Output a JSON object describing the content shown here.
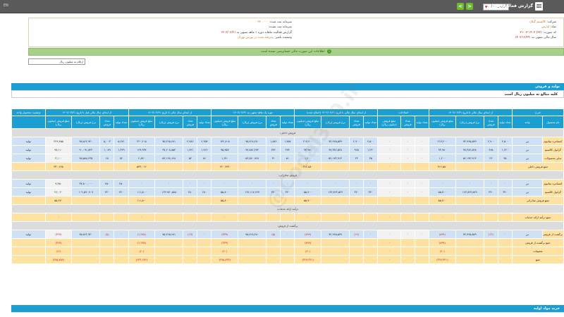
{
  "header": {
    "title": "گزارش فعالیت ماهانه",
    "select_value": "گزارش فعالیت",
    "left_text": "EN",
    "prev_symbol": "<",
    "next_symbol": ">"
  },
  "info": {
    "right_col": [
      {
        "label": "شرکت:",
        "value": "کالسیم گیلان"
      },
      {
        "label": "نماد:",
        "value": "لپارس"
      },
      {
        "label": "کد صورت:",
        "value": "(۳۲) ۱۴۰۳-۰۳-۳۱"
      },
      {
        "label": "سال مالی منتهی به:",
        "value": "۱۴۰۲/۱۲/۲۹"
      }
    ],
    "mid_col": [
      {
        "label": "سرمایه ثبت شده:",
        "value": "۳۲۰,۰۰۰"
      },
      {
        "label": "سرمایه ثبت نشده:",
        "value": "۰"
      },
      {
        "label": "گزارش فعالیت ماهانه دوره ۱ ماهه منتهی به",
        "value": "۱۴۰۳/۰۳/۳۱"
      },
      {
        "label": "وضعیت ناشر:",
        "value": "پذیرفته شده در بورس تهران"
      }
    ]
  },
  "notice": "اطلاعات این صورت مالی حسابرسی نشده است",
  "filter_box": "ارقام به میلیون ریال",
  "section1_title": "تولید و فروش",
  "section1_sub": "کلیه مبالغ به میلیون ریال است",
  "table": {
    "group_headers": [
      "شرح",
      "از ابتدای سال مالی تا تاریخ ۱۴۰۳/۰۲/۳۱",
      "اصلاحات",
      "از ابتدای سال مالی تا تاریخ ۱۴۰۳/۰۲/۳۱ (اصلاح شده)",
      "دوره یک ماهه منتهی به ۱۴۰۳/۰۳/۳۱",
      "از ابتدای سال مالی تا تاریخ ۱۴۰۳/۰۳/۳۱",
      "از ابتدای سال مالی قبل تا تاریخ ۱۴۰۲/۰۳/۳۱",
      "وضعیت محصول-واحد"
    ],
    "sub_headers": [
      "نام محصول",
      "واحد",
      "تعداد تولید",
      "تعداد فروش",
      "نرخ فروش (ریال)",
      "مبلغ فروش (میلیون ریال)",
      "تعداد تولید",
      "تعداد فروش",
      "مبلغ فروش (میلیون ریال)",
      "تعداد تولید",
      "تعداد فروش",
      "نرخ فروش (ریال)",
      "مبلغ فروش (میلیون ریال)",
      "تعداد تولید",
      "تعداد فروش",
      "نرخ فروش (ریال)",
      "مبلغ فروش (میلیون ریال)",
      "تعداد تولید",
      "تعداد فروش",
      "نرخ فروش (ریال)",
      "مبلغ فروش (میلیون ریال)",
      "تعداد تولید",
      "تعداد فروش",
      "نرخ فروش (ریال)",
      "مبلغ فروش (میلیون ریال)",
      ""
    ],
    "rows": [
      {
        "kind": "cat",
        "label": "فروش داخلی:"
      },
      {
        "kind": "data",
        "label": "کنسانتره تیتانیوم",
        "unit": "تن",
        "cells": [
          "۴,۵۰۰",
          "۲,۹۰۰",
          "۷۴,۹۶۵,۵۷۹",
          "۲۱۷,۴۰۰",
          "۰",
          "۰",
          "۰",
          "۴,۵۰۰",
          "۲,۹۰۰",
          "۷۴,۹۶۵,۵۷۹",
          "۲۱۷,۴۰۰",
          "۱,۷۵۷",
          "۱,۸۸۶",
          "۷۵,۷۱۸,۴۸۰",
          "۱۴۲,۸۰۵",
          "۶,۲۵۷",
          "۴,۷۸۶",
          "۷۵,۲۶۵,۶۸۱",
          "۳۶۰,۲۰۵",
          "۵,۶۷۱",
          "۵,۰۰۳",
          "۴۵,۸۶۲,۹۴۰",
          "۲۲۹,۴۵۵",
          "تولید"
        ]
      },
      {
        "kind": "data",
        "label": "گرانول کالسیم",
        "unit": "تن",
        "cells": [
          "۱,۲۴۰",
          "۹۶۵",
          "۹۷,۳۸۶,۵۲۸",
          "۹۳,۹۸۰",
          "۰",
          "۰",
          "۰",
          "۱,۲۴۰",
          "۹۶۵",
          "۹۷,۳۸۶,۵۲۸",
          "۹۳,۹۸۰",
          "۴۷۴",
          "۷۷۶",
          "۹۷,۸۸۲,۴۷۴",
          "۷۵,۹۵۷",
          "۱,۷۱۴",
          "۱,۷۴۱",
          "۹۷,۶۰۸,۸۵۴",
          "۱۶۹,۹۳۷",
          "۱,۳۲۹",
          "۱,۰۸۹",
          "۹۰,۰۹۱,۸۲۴",
          "۹۸,۱۱۰",
          "تولید"
        ]
      },
      {
        "kind": "data",
        "label": "سایر محصولات",
        "unit": "تن",
        "cells": [
          "۳۵",
          "۲۳",
          "۵۲,۱۷۳,۹۱۳",
          "۱,۲۰۰",
          "۰",
          "۰",
          "۰",
          "۳۵",
          "۲۳",
          "۵۲,۱۷۳,۹۱۳",
          "۱,۲۰۰",
          "۵۱",
          "۳۱",
          "۵۳,۸۷۰,۹۶۸",
          "۱,۶۷۰",
          "۸۶",
          "۵۴",
          "۵۳,۱۴۸,۱۴۸",
          "۲,۸۷۰",
          "۸۲",
          "۶۸",
          "۴۵,۵۸۸,۲۳۵",
          "۳,۱۰۰",
          "تولید"
        ]
      },
      {
        "kind": "sum",
        "label": "جمع فروش داخلی",
        "cells": [
          "",
          "",
          "",
          "۳۱۲,۵۸۰",
          "",
          "",
          "۰",
          "",
          "",
          "",
          "۳۱۲,۵۸۰",
          "",
          "",
          "",
          "۲۲۰,۴۳۲",
          "",
          "",
          "",
          "۵۳۳,۰۱۲",
          "",
          "",
          "",
          "۳۳۰,۶۶۵",
          ""
        ]
      },
      {
        "kind": "cat",
        "label": "فروش صادراتی:"
      },
      {
        "kind": "data",
        "label": "کنسانتره تیتانیوم",
        "unit": "تن",
        "cells": [
          "۰",
          "۰",
          "۰",
          "۰",
          "۰",
          "۰",
          "۰",
          "۰",
          "۰",
          "۰",
          "۰",
          "۰",
          "۰",
          "۰",
          "۰",
          "۰",
          "۰",
          "۰",
          "۰",
          "۲۵۰",
          "۲۵۰",
          "۳۷,۸۰۰,۰۰۰",
          "۹,۴۵۰",
          "تولید"
        ]
      },
      {
        "kind": "data",
        "label": "گرانول کالسیم",
        "unit": "تن",
        "cells": [
          "۳۴۰",
          "۳۴۰",
          "۱۶۳,۸۲۳,۵۲۹",
          "۵۵,۷۰۰",
          "۰",
          "۰",
          "۰",
          "۳۴۰",
          "۳۴۰",
          "۱۶۳,۸۲۳,۵۲۹",
          "۵۵,۷۰۰",
          "۳۴۰",
          "۳۴۰",
          "۱۶۴,۱۱۷,۶۴۷",
          "۵۵,۸۰۰",
          "۶۸۰",
          "۶۸۰",
          "۱۶۳,۹۷۰,۵۸۸",
          "۱۱۱,۵۰۰",
          "۴۴۰",
          "۴۴۰",
          "۱۰۴,۵۹۰,۹۰۹",
          "۴۶,۰۲۰",
          "تولید"
        ]
      },
      {
        "kind": "sum",
        "label": "جمع فروش صادراتی",
        "cells": [
          "",
          "",
          "",
          "۵۵,۷۰۰",
          "",
          "",
          "۰",
          "",
          "",
          "",
          "۵۵,۷۰۰",
          "",
          "",
          "",
          "۵۵,۸۰۰",
          "",
          "",
          "",
          "۱۱۱,۵۰۰",
          "",
          "",
          "",
          "۵۵,۴۷۰",
          ""
        ]
      },
      {
        "kind": "cat",
        "label": "درآمد ارائه خدمات:"
      },
      {
        "kind": "sum",
        "label": "جمع درآمد ارائه خدمات",
        "cells": [
          "",
          "",
          "",
          "۰",
          "",
          "",
          "۰",
          "",
          "",
          "",
          "۰",
          "",
          "",
          "",
          "۰",
          "",
          "",
          "",
          "۰",
          "",
          "",
          "",
          "۰",
          ""
        ]
      },
      {
        "kind": "cat",
        "label": "برگشت از فروش:"
      },
      {
        "kind": "data",
        "label": "برگشت از فروش",
        "unit": "تن",
        "neg": true,
        "cells": [
          "۰",
          "(۱۲)",
          "۷۴,۹۶۵,۵۷۹",
          "(۸۹۹)",
          "۰",
          "۰",
          "۰",
          "۰",
          "(۱۲)",
          "۷۴,۹۶۵,۵۷۹",
          "(۸۹۹)",
          "۰",
          "(۵)",
          "۷۵,۷۱۸,۴۸۰",
          "(۳۷۹)",
          "۰",
          "(۱۷)",
          "۷۵,۲۶۵,۶۸۱",
          "(۱,۲۷۸)",
          "۰",
          "(۸)",
          "۴۵,۸۶۲,۹۴۰",
          "(۳۶۷)",
          "تولید"
        ]
      },
      {
        "kind": "sum",
        "label": "جمع برگشت از فروش",
        "neg": true,
        "cells": [
          "",
          "",
          "",
          "(۸۹۹)",
          "",
          "",
          "۰",
          "",
          "",
          "",
          "(۸۹۹)",
          "",
          "",
          "",
          "(۳۷۹)",
          "",
          "",
          "",
          "(۱,۲۷۸)",
          "",
          "",
          "",
          "(۳۶۷)",
          ""
        ]
      },
      {
        "kind": "sum",
        "label": "تخفیفات",
        "neg": true,
        "cells": [
          "",
          "",
          "",
          "(۴۰)",
          "",
          "",
          "۰",
          "",
          "",
          "",
          "(۴۰)",
          "",
          "",
          "",
          "(۲۰)",
          "",
          "",
          "",
          "(۶۰)",
          "",
          "",
          "",
          "(۱۲)",
          ""
        ]
      },
      {
        "kind": "sum",
        "label": "جمع",
        "neg": true,
        "cells": [
          "",
          "",
          "",
          "(۳۶۷,۳۴۱)",
          "",
          "",
          "۰",
          "",
          "",
          "",
          "(۳۶۷,۳۴۱)",
          "",
          "",
          "",
          "(۲۷۵,۸۳۳)",
          "",
          "",
          "",
          "(۶۴۳,۱۷۴)",
          "",
          "",
          "",
          "(۳۸۵,۷۵۶)",
          ""
        ]
      }
    ]
  },
  "bottom_title": "خرید مواد اولیه",
  "watermark": "@Codal360.ir"
}
